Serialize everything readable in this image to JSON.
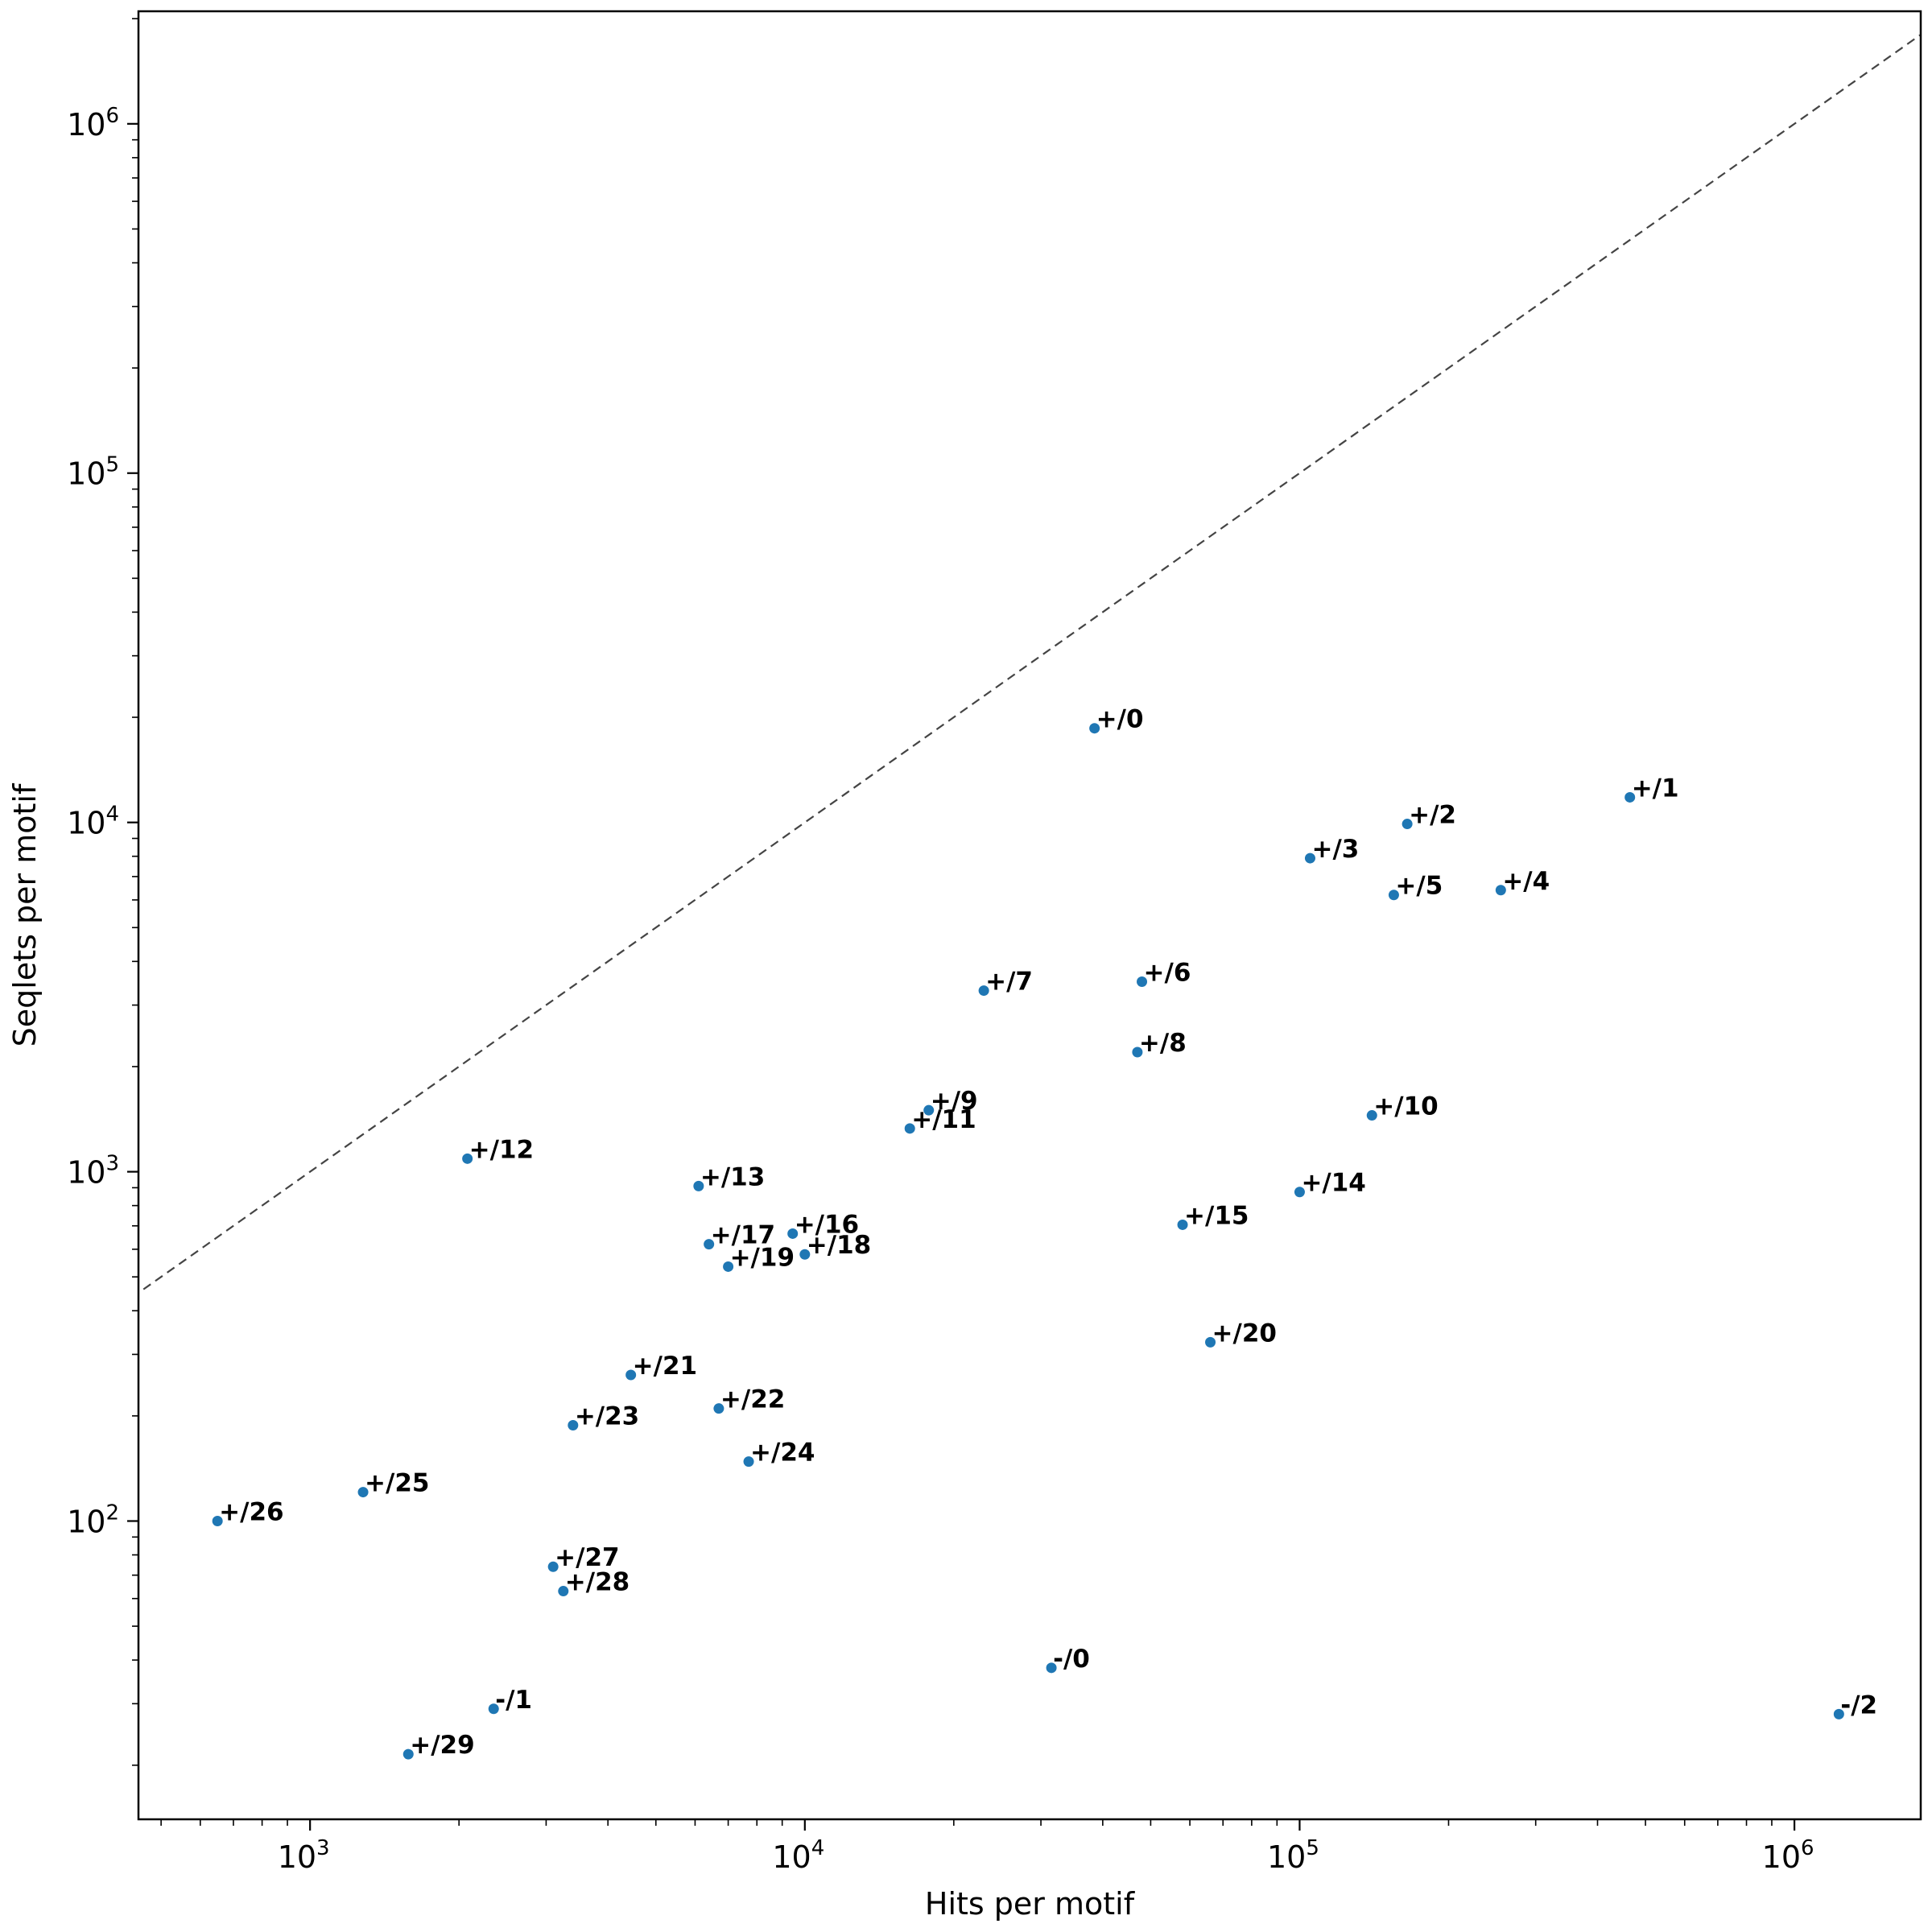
{
  "chart_data": {
    "type": "scatter",
    "xlabel": "Hits per motif",
    "ylabel": "Seqlets per motif",
    "xscale": "log",
    "yscale": "log",
    "xlim": [
      450,
      1800000
    ],
    "ylim": [
      14,
      2100000
    ],
    "xticks": [
      {
        "base": "10",
        "exp": "3",
        "value": 1000
      },
      {
        "base": "10",
        "exp": "4",
        "value": 10000
      },
      {
        "base": "10",
        "exp": "5",
        "value": 100000
      },
      {
        "base": "10",
        "exp": "6",
        "value": 1000000
      }
    ],
    "yticks": [
      {
        "base": "10",
        "exp": "2",
        "value": 100
      },
      {
        "base": "10",
        "exp": "3",
        "value": 1000
      },
      {
        "base": "10",
        "exp": "4",
        "value": 10000
      },
      {
        "base": "10",
        "exp": "5",
        "value": 100000
      },
      {
        "base": "10",
        "exp": "6",
        "value": 1000000
      }
    ],
    "reference_line": "y = x",
    "grid": false,
    "point_color": "#1f77b4",
    "points": [
      {
        "label": "+/0",
        "x": 38500,
        "y": 18600
      },
      {
        "label": "+/1",
        "x": 465000,
        "y": 11800
      },
      {
        "label": "+/2",
        "x": 165000,
        "y": 9900
      },
      {
        "label": "+/3",
        "x": 105000,
        "y": 7900
      },
      {
        "label": "+/4",
        "x": 255000,
        "y": 6400
      },
      {
        "label": "+/5",
        "x": 155000,
        "y": 6200
      },
      {
        "label": "+/6",
        "x": 48000,
        "y": 3500
      },
      {
        "label": "+/7",
        "x": 23000,
        "y": 3300
      },
      {
        "label": "+/8",
        "x": 47000,
        "y": 2200
      },
      {
        "label": "+/9",
        "x": 17800,
        "y": 1500
      },
      {
        "label": "+/10",
        "x": 140000,
        "y": 1450
      },
      {
        "label": "+/11",
        "x": 16300,
        "y": 1330
      },
      {
        "label": "+/12",
        "x": 2080,
        "y": 1090
      },
      {
        "label": "+/13",
        "x": 6100,
        "y": 910
      },
      {
        "label": "+/14",
        "x": 100000,
        "y": 875
      },
      {
        "label": "+/15",
        "x": 58000,
        "y": 705
      },
      {
        "label": "+/16",
        "x": 9450,
        "y": 665
      },
      {
        "label": "+/17",
        "x": 6400,
        "y": 620
      },
      {
        "label": "+/18",
        "x": 10000,
        "y": 580
      },
      {
        "label": "+/19",
        "x": 7000,
        "y": 535
      },
      {
        "label": "+/20",
        "x": 66000,
        "y": 325
      },
      {
        "label": "+/21",
        "x": 4450,
        "y": 262
      },
      {
        "label": "+/22",
        "x": 6700,
        "y": 210
      },
      {
        "label": "+/23",
        "x": 3400,
        "y": 188
      },
      {
        "label": "+/24",
        "x": 7700,
        "y": 148
      },
      {
        "label": "+/25",
        "x": 1280,
        "y": 121
      },
      {
        "label": "+/26",
        "x": 650,
        "y": 100
      },
      {
        "label": "+/27",
        "x": 3100,
        "y": 74
      },
      {
        "label": "+/28",
        "x": 3250,
        "y": 63
      },
      {
        "label": "-/0",
        "x": 31500,
        "y": 38
      },
      {
        "label": "-/1",
        "x": 2350,
        "y": 29
      },
      {
        "label": "+/29",
        "x": 1580,
        "y": 21.5
      },
      {
        "label": "-/2",
        "x": 1230000,
        "y": 28
      }
    ]
  }
}
